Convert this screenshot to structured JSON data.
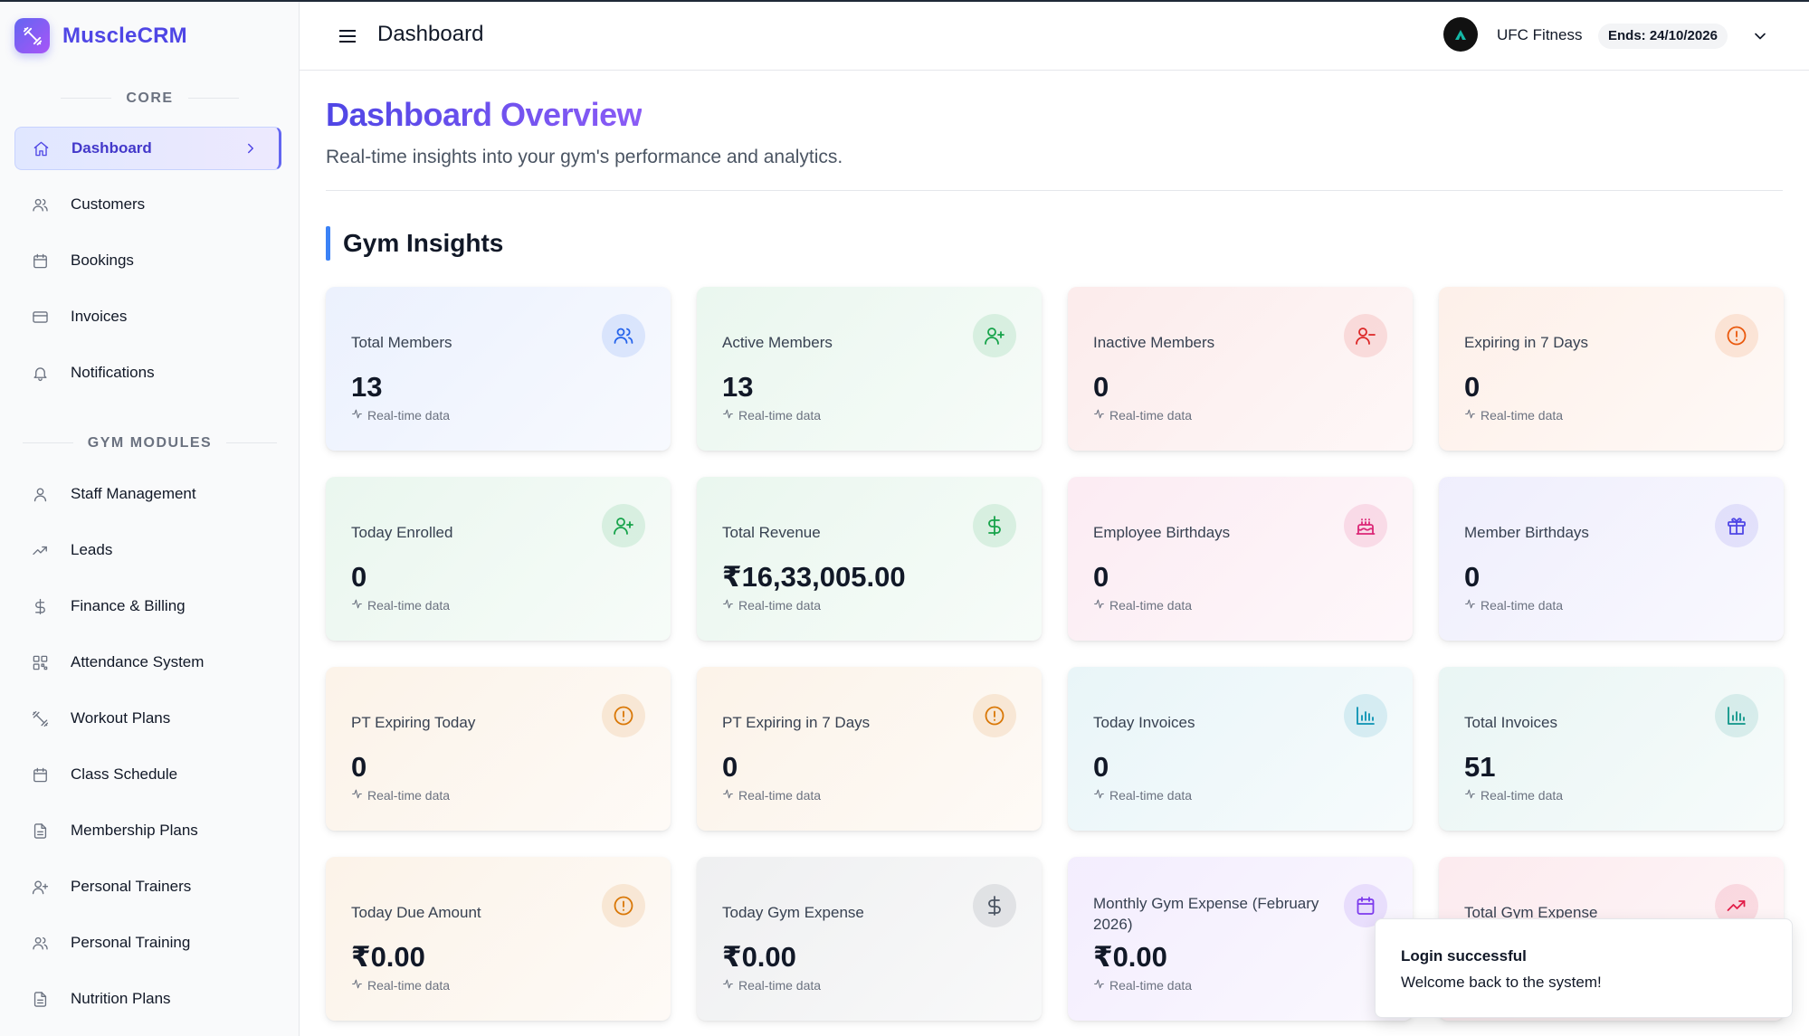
{
  "brand": {
    "name": "MuscleCRM"
  },
  "sidebar": {
    "core_label": "CORE",
    "modules_label": "GYM MODULES",
    "core_items": [
      {
        "label": "Dashboard",
        "icon": "home-icon",
        "active": true
      },
      {
        "label": "Customers",
        "icon": "users-icon"
      },
      {
        "label": "Bookings",
        "icon": "calendar-icon"
      },
      {
        "label": "Invoices",
        "icon": "credit-card-icon"
      },
      {
        "label": "Notifications",
        "icon": "bell-icon"
      }
    ],
    "module_items": [
      {
        "label": "Staff Management",
        "icon": "user-icon"
      },
      {
        "label": "Leads",
        "icon": "trending-up-icon"
      },
      {
        "label": "Finance & Billing",
        "icon": "dollar-icon"
      },
      {
        "label": "Attendance System",
        "icon": "qr-code-icon"
      },
      {
        "label": "Workout Plans",
        "icon": "dumbbell-icon"
      },
      {
        "label": "Class Schedule",
        "icon": "calendar-icon"
      },
      {
        "label": "Membership Plans",
        "icon": "document-icon"
      },
      {
        "label": "Personal Trainers",
        "icon": "user-plus-icon"
      },
      {
        "label": "Personal Training",
        "icon": "users-icon"
      },
      {
        "label": "Nutrition Plans",
        "icon": "document-icon"
      }
    ]
  },
  "header": {
    "title": "Dashboard",
    "gym_name": "UFC Fitness",
    "ends": "Ends: 24/10/2026"
  },
  "main": {
    "title": "Dashboard Overview",
    "subtitle": "Real-time insights into your gym's performance and analytics.",
    "section_title": "Gym Insights",
    "footer_text": "Real-time data",
    "cards": [
      {
        "label": "Total Members",
        "value": "13",
        "icon": "users-icon",
        "accent": "#2563eb"
      },
      {
        "label": "Active Members",
        "value": "13",
        "icon": "user-plus-icon",
        "accent": "#16a34a"
      },
      {
        "label": "Inactive Members",
        "value": "0",
        "icon": "user-minus-icon",
        "accent": "#dc2626"
      },
      {
        "label": "Expiring in 7 Days",
        "value": "0",
        "icon": "alert-circle-icon",
        "accent": "#ea580c"
      },
      {
        "label": "Today Enrolled",
        "value": "0",
        "icon": "user-plus-icon",
        "accent": "#16a34a"
      },
      {
        "label": "Total Revenue",
        "value": "₹16,33,005.00",
        "icon": "dollar-icon",
        "accent": "#16a34a"
      },
      {
        "label": "Employee Birthdays",
        "value": "0",
        "icon": "cake-icon",
        "accent": "#db2777"
      },
      {
        "label": "Member Birthdays",
        "value": "0",
        "icon": "gift-icon",
        "accent": "#4f46e5"
      },
      {
        "label": "PT Expiring Today",
        "value": "0",
        "icon": "alert-circle-icon",
        "accent": "#d97706"
      },
      {
        "label": "PT Expiring in 7 Days",
        "value": "0",
        "icon": "alert-circle-icon",
        "accent": "#d97706"
      },
      {
        "label": "Today Invoices",
        "value": "0",
        "icon": "bar-chart-icon",
        "accent": "#0891b2"
      },
      {
        "label": "Total Invoices",
        "value": "51",
        "icon": "bar-chart-icon",
        "accent": "#0d9488"
      },
      {
        "label": "Today Due Amount",
        "value": "₹0.00",
        "icon": "alert-circle-icon",
        "accent": "#d97706"
      },
      {
        "label": "Today Gym Expense",
        "value": "₹0.00",
        "icon": "dollar-icon",
        "accent": "#4b5563"
      },
      {
        "label": "Monthly Gym Expense (February 2026)",
        "value": "₹0.00",
        "icon": "calendar-icon",
        "accent": "#7c3aed"
      },
      {
        "label": "Total Gym Expense",
        "value": "",
        "icon": "trending-up-icon",
        "accent": "#e11d48"
      }
    ]
  },
  "toast": {
    "title": "Login successful",
    "message": "Welcome back to the system!"
  }
}
